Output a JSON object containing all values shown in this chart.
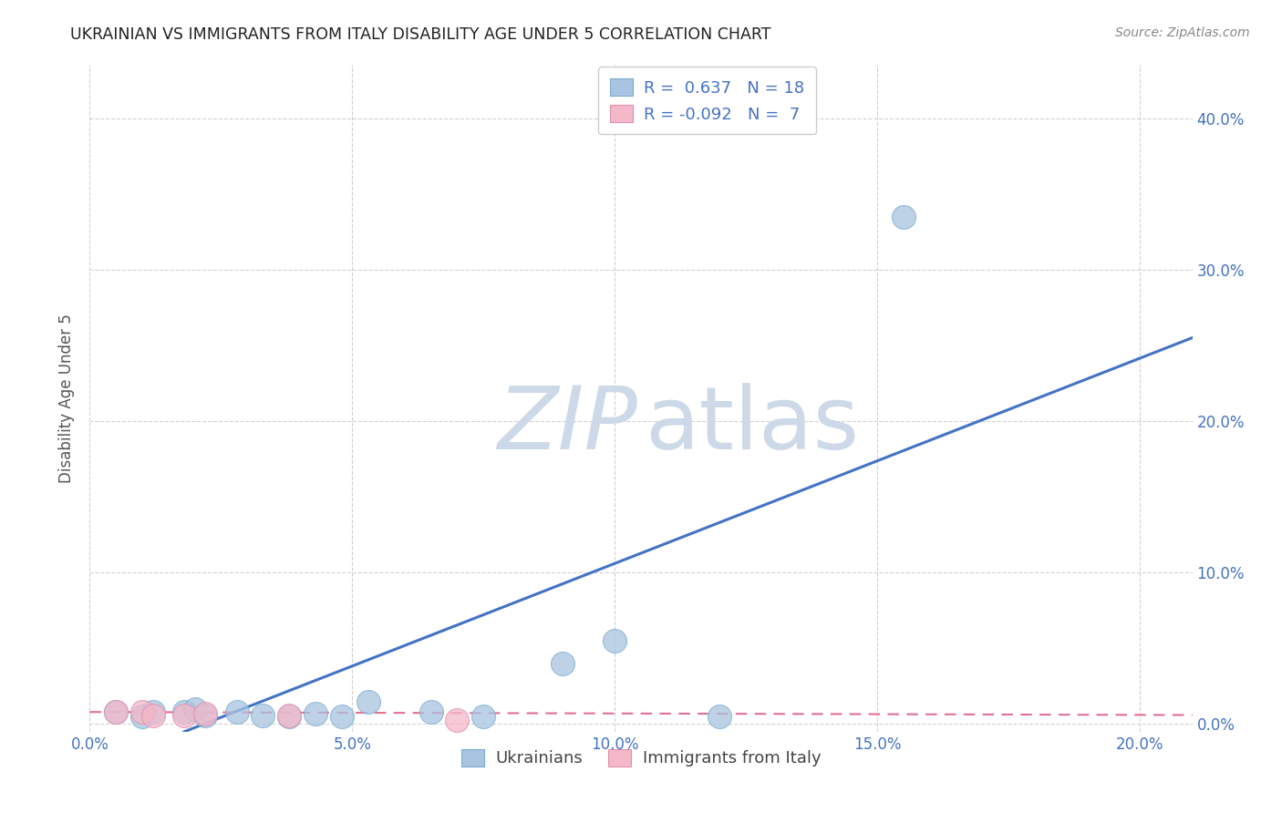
{
  "title": "UKRAINIAN VS IMMIGRANTS FROM ITALY DISABILITY AGE UNDER 5 CORRELATION CHART",
  "source": "Source: ZipAtlas.com",
  "ylabel": "Disability Age Under 5",
  "xlim": [
    0.0,
    0.21
  ],
  "ylim": [
    -0.005,
    0.435
  ],
  "blue_R": 0.637,
  "blue_N": 18,
  "pink_R": -0.092,
  "pink_N": 7,
  "blue_color": "#a8c4e0",
  "pink_color": "#f4b8c8",
  "blue_line_color": "#4472c4",
  "pink_line_color": "#e07090",
  "watermark_color": "#cdd9e8",
  "blue_scatter_x": [
    0.005,
    0.01,
    0.012,
    0.018,
    0.02,
    0.022,
    0.028,
    0.033,
    0.038,
    0.043,
    0.048,
    0.053,
    0.065,
    0.075,
    0.09,
    0.1,
    0.12,
    0.155
  ],
  "blue_scatter_y": [
    0.008,
    0.005,
    0.008,
    0.008,
    0.01,
    0.006,
    0.008,
    0.006,
    0.005,
    0.007,
    0.005,
    0.015,
    0.008,
    0.005,
    0.04,
    0.055,
    0.005,
    0.335
  ],
  "pink_scatter_x": [
    0.005,
    0.01,
    0.012,
    0.018,
    0.022,
    0.038,
    0.07
  ],
  "pink_scatter_y": [
    0.008,
    0.008,
    0.006,
    0.006,
    0.007,
    0.006,
    0.003
  ],
  "blue_trend_x": [
    0.018,
    0.21
  ],
  "blue_trend_y": [
    -0.005,
    0.255
  ],
  "pink_trend_x": [
    0.0,
    0.21
  ],
  "pink_trend_y": [
    0.008,
    0.006
  ],
  "axis_color": "#4472c4",
  "grid_color": "#cccccc",
  "legend_label_blue": "R =  0.637   N = 18",
  "legend_label_pink": "R = -0.092   N =  7",
  "legend_xlabel_blue": "Ukrainians",
  "legend_xlabel_pink": "Immigrants from Italy",
  "yticks": [
    0.0,
    0.1,
    0.2,
    0.3,
    0.4
  ],
  "xticks": [
    0.0,
    0.05,
    0.1,
    0.15,
    0.2
  ]
}
